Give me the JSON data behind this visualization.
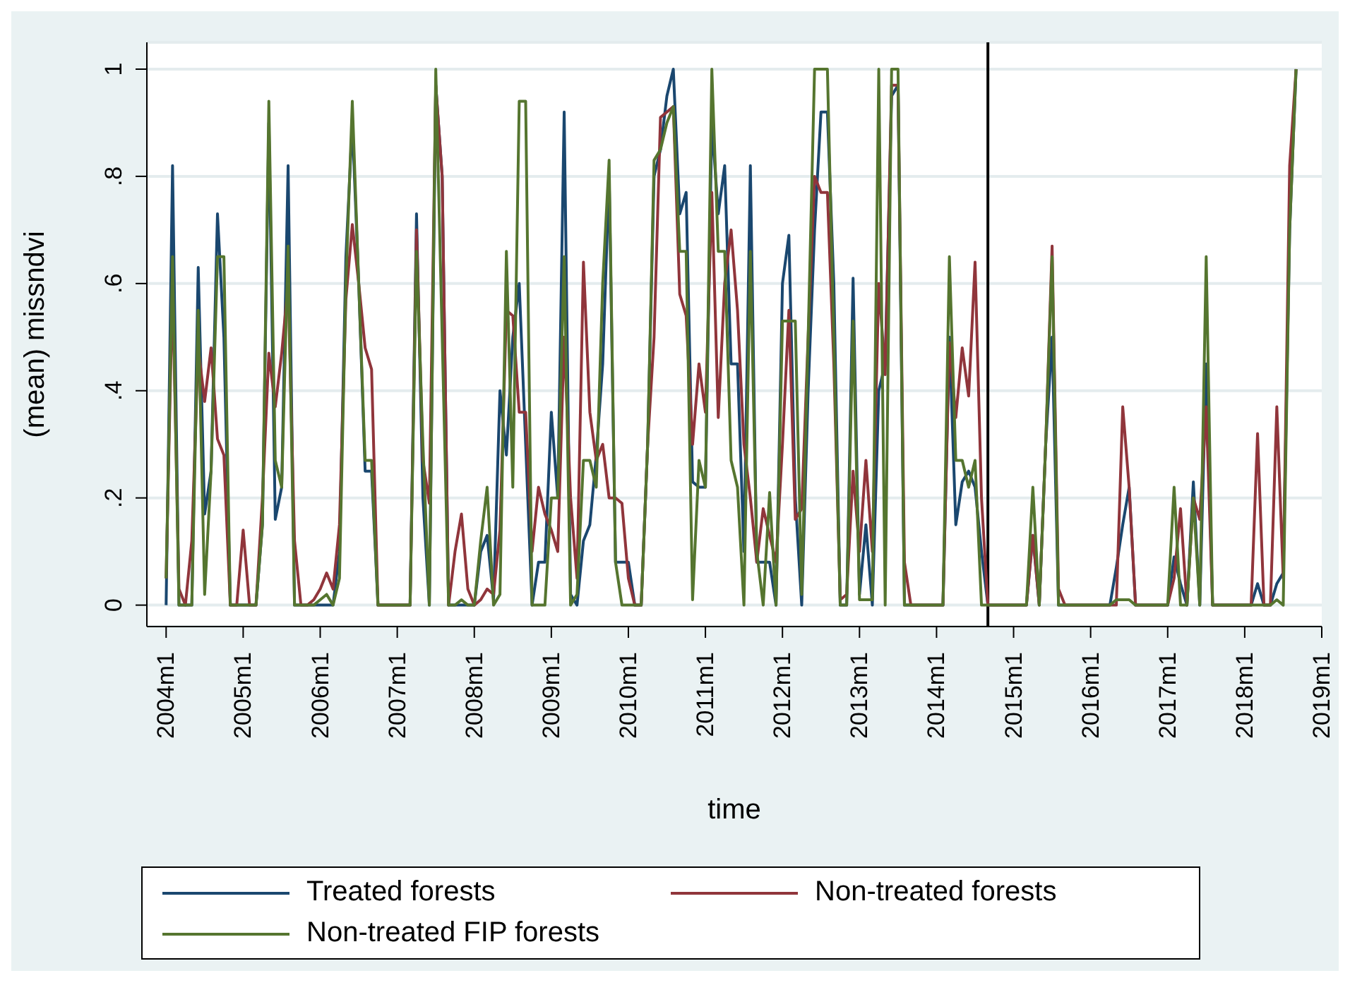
{
  "chart_data": {
    "type": "line",
    "xlabel": "time",
    "ylabel": "(mean) missndvi",
    "x": [
      "2004-01",
      "2004-02",
      "2004-03",
      "2004-04",
      "2004-05",
      "2004-06",
      "2004-07",
      "2004-08",
      "2004-09",
      "2004-10",
      "2004-11",
      "2004-12",
      "2005-01",
      "2005-02",
      "2005-03",
      "2005-04",
      "2005-05",
      "2005-06",
      "2005-07",
      "2005-08",
      "2005-09",
      "2005-10",
      "2005-11",
      "2005-12",
      "2006-01",
      "2006-02",
      "2006-03",
      "2006-04",
      "2006-05",
      "2006-06",
      "2006-07",
      "2006-08",
      "2006-09",
      "2006-10",
      "2006-11",
      "2006-12",
      "2007-01",
      "2007-02",
      "2007-03",
      "2007-04",
      "2007-05",
      "2007-06",
      "2007-07",
      "2007-08",
      "2007-09",
      "2007-10",
      "2007-11",
      "2007-12",
      "2008-01",
      "2008-02",
      "2008-03",
      "2008-04",
      "2008-05",
      "2008-06",
      "2008-07",
      "2008-08",
      "2008-09",
      "2008-10",
      "2008-11",
      "2008-12",
      "2009-01",
      "2009-02",
      "2009-03",
      "2009-04",
      "2009-05",
      "2009-06",
      "2009-07",
      "2009-08",
      "2009-09",
      "2009-10",
      "2009-11",
      "2009-12",
      "2010-01",
      "2010-02",
      "2010-03",
      "2010-04",
      "2010-05",
      "2010-06",
      "2010-07",
      "2010-08",
      "2010-09",
      "2010-10",
      "2010-11",
      "2010-12",
      "2011-01",
      "2011-02",
      "2011-03",
      "2011-04",
      "2011-05",
      "2011-06",
      "2011-07",
      "2011-08",
      "2011-09",
      "2011-10",
      "2011-11",
      "2011-12",
      "2012-01",
      "2012-02",
      "2012-03",
      "2012-04",
      "2012-05",
      "2012-06",
      "2012-07",
      "2012-08",
      "2012-09",
      "2012-10",
      "2012-11",
      "2012-12",
      "2013-01",
      "2013-02",
      "2013-03",
      "2013-04",
      "2013-05",
      "2013-06",
      "2013-07",
      "2013-08",
      "2013-09",
      "2013-10",
      "2013-11",
      "2013-12",
      "2014-01",
      "2014-02",
      "2014-03",
      "2014-04",
      "2014-05",
      "2014-06",
      "2014-07",
      "2014-08",
      "2014-09",
      "2014-10",
      "2014-11",
      "2014-12",
      "2015-01",
      "2015-02",
      "2015-03",
      "2015-04",
      "2015-05",
      "2015-06",
      "2015-07",
      "2015-08",
      "2015-09",
      "2015-10",
      "2015-11",
      "2015-12",
      "2016-01",
      "2016-02",
      "2016-03",
      "2016-04",
      "2016-05",
      "2016-06",
      "2016-07",
      "2016-08",
      "2016-09",
      "2016-10",
      "2016-11",
      "2016-12",
      "2017-01",
      "2017-02",
      "2017-03",
      "2017-04",
      "2017-05",
      "2017-06",
      "2017-07",
      "2017-08",
      "2017-09",
      "2017-10",
      "2017-11",
      "2017-12",
      "2018-01",
      "2018-02",
      "2018-03",
      "2018-04",
      "2018-05",
      "2018-06",
      "2018-07",
      "2018-08",
      "2018-09"
    ],
    "series": [
      {
        "name": "Treated forests",
        "color": "#1a476f",
        "values": [
          0,
          0.82,
          0,
          0,
          0,
          0.63,
          0.17,
          0.25,
          0.73,
          0.5,
          0,
          0,
          0,
          0,
          0,
          0.15,
          0.9,
          0.16,
          0.22,
          0.82,
          0,
          0,
          0,
          0,
          0,
          0,
          0,
          0.1,
          0.65,
          0.9,
          0.6,
          0.25,
          0.25,
          0,
          0,
          0,
          0,
          0,
          0,
          0.73,
          0.2,
          0,
          0.97,
          0.8,
          0,
          0,
          0,
          0,
          0,
          0.1,
          0.13,
          0.01,
          0.4,
          0.28,
          0.5,
          0.6,
          0.3,
          0,
          0.08,
          0.08,
          0.36,
          0.2,
          0.92,
          0.02,
          0,
          0.12,
          0.15,
          0.28,
          0.45,
          0.8,
          0.08,
          0.08,
          0.08,
          0,
          0,
          0.3,
          0.8,
          0.85,
          0.95,
          1,
          0.73,
          0.77,
          0.23,
          0.22,
          0.22,
          0.9,
          0.73,
          0.82,
          0.45,
          0.45,
          0.1,
          0.82,
          0.08,
          0.08,
          0.08,
          0,
          0.6,
          0.69,
          0.2,
          0,
          0.4,
          0.7,
          0.92,
          0.92,
          0.6,
          0,
          0,
          0.61,
          0.02,
          0.15,
          0,
          0.4,
          0.45,
          0.95,
          0.97,
          0,
          0,
          0,
          0,
          0,
          0,
          0,
          0.5,
          0.15,
          0.23,
          0.25,
          0.22,
          0.1,
          0,
          0,
          0,
          0,
          0,
          0,
          0,
          0.13,
          0,
          0.3,
          0.5,
          0,
          0,
          0,
          0,
          0,
          0,
          0,
          0,
          0,
          0.07,
          0.15,
          0.22,
          0,
          0,
          0,
          0,
          0,
          0,
          0.09,
          0.04,
          0,
          0.23,
          0,
          0.45,
          0,
          0,
          0,
          0,
          0,
          0,
          0,
          0.04,
          0,
          0,
          0.04,
          0.06,
          0.7,
          1
        ]
      },
      {
        "name": "Non-treated forests",
        "color": "#90353b",
        "values": [
          0.05,
          0.6,
          0.03,
          0,
          0.12,
          0.48,
          0.38,
          0.48,
          0.31,
          0.28,
          0,
          0,
          0.14,
          0,
          0,
          0.2,
          0.47,
          0.37,
          0.47,
          0.6,
          0.12,
          0,
          0,
          0.01,
          0.03,
          0.06,
          0.03,
          0.15,
          0.57,
          0.71,
          0.6,
          0.48,
          0.44,
          0,
          0,
          0,
          0,
          0,
          0,
          0.7,
          0.27,
          0.19,
          0.97,
          0.8,
          0,
          0.1,
          0.17,
          0.03,
          0,
          0.01,
          0.03,
          0.02,
          0.14,
          0.55,
          0.54,
          0.36,
          0.36,
          0.1,
          0.22,
          0.17,
          0.14,
          0.1,
          0.5,
          0.2,
          0.05,
          0.64,
          0.36,
          0.27,
          0.3,
          0.2,
          0.2,
          0.19,
          0.05,
          0,
          0,
          0.3,
          0.5,
          0.91,
          0.92,
          0.93,
          0.58,
          0.54,
          0.3,
          0.45,
          0.36,
          0.77,
          0.35,
          0.6,
          0.7,
          0.55,
          0.3,
          0.2,
          0.08,
          0.18,
          0.13,
          0.08,
          0.3,
          0.55,
          0.16,
          0.18,
          0.5,
          0.8,
          0.77,
          0.77,
          0.45,
          0.01,
          0.02,
          0.25,
          0.1,
          0.27,
          0.1,
          0.6,
          0.43,
          0.97,
          0.97,
          0.08,
          0,
          0,
          0,
          0,
          0,
          0,
          0.49,
          0.35,
          0.48,
          0.39,
          0.64,
          0.2,
          0,
          0,
          0,
          0,
          0,
          0,
          0,
          0.13,
          0,
          0.3,
          0.67,
          0.03,
          0,
          0,
          0,
          0,
          0,
          0,
          0,
          0,
          0,
          0.37,
          0.22,
          0,
          0,
          0,
          0,
          0,
          0,
          0.05,
          0.18,
          0,
          0.2,
          0.16,
          0.37,
          0,
          0,
          0,
          0,
          0,
          0,
          0,
          0.32,
          0,
          0,
          0.37,
          0.05,
          0.82,
          1
        ]
      },
      {
        "name": "Non-treated FIP forests",
        "color": "#55752f",
        "values": [
          0.05,
          0.65,
          0,
          0,
          0,
          0.55,
          0.02,
          0.25,
          0.65,
          0.65,
          0,
          0,
          0,
          0,
          0,
          0.15,
          0.94,
          0.27,
          0.22,
          0.67,
          0,
          0,
          0,
          0,
          0.01,
          0.02,
          0,
          0.05,
          0.6,
          0.94,
          0.6,
          0.27,
          0.27,
          0,
          0,
          0,
          0,
          0,
          0,
          0.66,
          0.3,
          0,
          1,
          0.5,
          0,
          0,
          0.01,
          0,
          0,
          0.12,
          0.22,
          0,
          0.02,
          0.66,
          0.22,
          0.94,
          0.94,
          0,
          0,
          0,
          0.2,
          0.2,
          0.65,
          0,
          0.02,
          0.27,
          0.27,
          0.22,
          0.6,
          0.83,
          0.08,
          0,
          0,
          0,
          0,
          0.3,
          0.83,
          0.85,
          0.9,
          0.93,
          0.66,
          0.66,
          0.01,
          0.27,
          0.22,
          1,
          0.66,
          0.66,
          0.27,
          0.22,
          0,
          0.66,
          0.1,
          0,
          0.21,
          0,
          0.53,
          0.53,
          0.53,
          0.02,
          0.5,
          1,
          1,
          1,
          0.5,
          0,
          0,
          0.53,
          0.01,
          0.01,
          0.01,
          1,
          0,
          1,
          1,
          0,
          0,
          0,
          0,
          0,
          0,
          0,
          0.65,
          0.27,
          0.27,
          0.22,
          0.27,
          0,
          0,
          0,
          0,
          0,
          0,
          0,
          0,
          0.22,
          0,
          0.3,
          0.65,
          0,
          0,
          0,
          0,
          0,
          0,
          0,
          0,
          0,
          0.01,
          0.01,
          0.01,
          0,
          0,
          0,
          0,
          0,
          0,
          0.22,
          0,
          0,
          0.2,
          0,
          0.65,
          0,
          0,
          0,
          0,
          0,
          0,
          0,
          0,
          0,
          0,
          0.01,
          0,
          0.7,
          1
        ]
      }
    ],
    "xlim": [
      "2003-10",
      "2019-01"
    ],
    "xticks": [
      {
        "value": "2004-01",
        "label": "2004m1"
      },
      {
        "value": "2005-01",
        "label": "2005m1"
      },
      {
        "value": "2006-01",
        "label": "2006m1"
      },
      {
        "value": "2007-01",
        "label": "2007m1"
      },
      {
        "value": "2008-01",
        "label": "2008m1"
      },
      {
        "value": "2009-01",
        "label": "2009m1"
      },
      {
        "value": "2010-01",
        "label": "2010m1"
      },
      {
        "value": "2011-01",
        "label": "2011m1"
      },
      {
        "value": "2012-01",
        "label": "2012m1"
      },
      {
        "value": "2013-01",
        "label": "2013m1"
      },
      {
        "value": "2014-01",
        "label": "2014m1"
      },
      {
        "value": "2015-01",
        "label": "2015m1"
      },
      {
        "value": "2016-01",
        "label": "2016m1"
      },
      {
        "value": "2017-01",
        "label": "2017m1"
      },
      {
        "value": "2018-01",
        "label": "2018m1"
      },
      {
        "value": "2019-01",
        "label": "2019m1"
      }
    ],
    "ylim": [
      -0.04,
      1.05
    ],
    "yticks": [
      0,
      {
        "value": 0.2,
        "label": ".2"
      },
      {
        "value": 0.4,
        "label": ".4"
      },
      {
        "value": 0.6,
        "label": ".6"
      },
      {
        "value": 0.8,
        "label": ".8"
      },
      1
    ],
    "grid": "y",
    "legend": "bottom",
    "ref_lines": [
      {
        "axis": "x",
        "value": "2014-09",
        "color": "#000000"
      }
    ]
  }
}
